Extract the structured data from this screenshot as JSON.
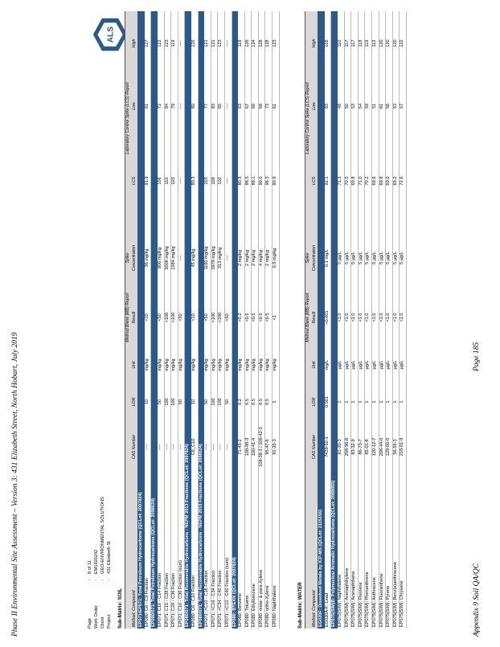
{
  "header": "Phase II Environmental Site Assessment – Version 3: 431 Elizabeth Street, North Hobart, July 2019",
  "footer": {
    "left": "Appendix 9 Soil QA/QC",
    "center": "Page 185"
  },
  "meta": [
    {
      "key": "Page",
      "value": "8 of 11"
    },
    {
      "key": "Work Order",
      "value": "EM1920242"
    },
    {
      "key": "Client",
      "value": "GEO-ENVIRONMENTAL SOLUTIONS"
    },
    {
      "key": "Project",
      "value": "431 Elizabeth St"
    }
  ],
  "logo_text": "ALS",
  "columns": {
    "analytical": "Method: Compound",
    "cas": "CAS Number",
    "lor": "LOR",
    "unit": "Unit",
    "mb": "Method Blank (MB) Report",
    "mb_result": "Result",
    "spike": "Spike",
    "spike_conc": "Concentration",
    "lcs": "Laboratory Control Spike (LCS) Report",
    "spike_recovery": "Spike Recovery (%)",
    "lcs_col": "LCS",
    "recovery_limits": "Recovery Limits (%)",
    "low": "Low",
    "high": "High"
  },
  "soil": {
    "label": "Sub-Matrix: SOIL",
    "groups": [
      {
        "title": "EP071/EP071: Total Petroleum Hydrocarbons (QCLot: 2097824)",
        "rows": [
          [
            "EP080: C6 - C9 Fraction",
            "----",
            "10",
            "mg/kg",
            "<10",
            "36 mg/kg",
            "91.9",
            "61",
            "127"
          ]
        ]
      },
      {
        "title": "EP080/071: Total Petroleum Hydrocarbons (QCLot: 2098624)",
        "rows": [
          [
            "EP071: C10 - C14 Fraction",
            "----",
            "50",
            "mg/kg",
            "<50",
            "806 mg/kg",
            "106",
            "72",
            "122"
          ],
          [
            "EP071: C15 - C28 Fraction",
            "----",
            "100",
            "mg/kg",
            "<100",
            "3006 mg/kg",
            "110",
            "84",
            "123"
          ],
          [
            "EP071: C29 - C36 Fraction",
            "----",
            "100",
            "mg/kg",
            "<100",
            "1584 mg/kg",
            "103",
            "79",
            "119"
          ],
          [
            "EP071: C10 - C36 Fraction (sum)",
            "----",
            "50",
            "mg/kg",
            "<50",
            "----",
            "----",
            "----",
            "----"
          ]
        ]
      },
      {
        "title": "EP080/071: Total Recoverable Hydrocarbons - NEPM 2013 Fractions (QCLot: 2097824)",
        "rows": [
          [
            "EP080: C6 - C10 Fraction",
            "C6_C10",
            "10",
            "mg/kg",
            "<10",
            "45 mg/kg",
            "89.3",
            "60",
            "125"
          ]
        ]
      },
      {
        "title": "EP080/071: Total Recoverable Hydrocarbons - NEPM 2013 Fractions (QCLot: 2098624)",
        "rows": [
          [
            "EP071: >C10 - C16 Fraction",
            "----",
            "50",
            "mg/kg",
            "<50",
            "1160 mg/kg",
            "103",
            "77",
            "121"
          ],
          [
            "EP071: >C16 - C34 Fraction",
            "----",
            "100",
            "mg/kg",
            "<100",
            "3978 mg/kg",
            "109",
            "83",
            "121"
          ],
          [
            "EP071: >C34 - C40 Fraction",
            "----",
            "100",
            "mg/kg",
            "<100",
            "313 mg/kg",
            "102",
            "65",
            "123"
          ],
          [
            "EP071: >C10 - C40 Fraction (sum)",
            "----",
            "50",
            "mg/kg",
            "<50",
            "----",
            "----",
            "----",
            "----"
          ]
        ]
      },
      {
        "title": "EP080: BTEXN (QCLot: 2097824)",
        "rows": [
          [
            "EP080: Benzene",
            "71-43-2",
            "0.2",
            "mg/kg",
            "<0.2",
            "2 mg/kg",
            "80.3",
            "63",
            "119"
          ],
          [
            "EP080: Toluene",
            "108-88-3",
            "0.5",
            "mg/kg",
            "<0.5",
            "2 mg/kg",
            "88.5",
            "67",
            "126"
          ],
          [
            "EP080: Ethylbenzene",
            "100-41-4",
            "0.5",
            "mg/kg",
            "<0.5",
            "2 mg/kg",
            "88.1",
            "66",
            "124"
          ],
          [
            "EP080: meta- & para-Xylene",
            "108-38-3 / 106-42-3",
            "0.5",
            "mg/kg",
            "<0.5",
            "4 mg/kg",
            "99.0",
            "68",
            "128"
          ],
          [
            "EP080: ortho-Xylene",
            "95-47-6",
            "0.5",
            "mg/kg",
            "<0.5",
            "2 mg/kg",
            "96.3",
            "73",
            "128"
          ],
          [
            "EP080: Naphthalene",
            "91-20-3",
            "1",
            "mg/kg",
            "<1",
            "0.5 mg/kg",
            "80.9",
            "61",
            "123"
          ]
        ]
      }
    ]
  },
  "water": {
    "label": "Sub-Matrix: WATER",
    "groups": [
      {
        "title": "EG020F: Dissolved Metals by ICP-MS (QCLot: 2115156)",
        "rows": [
          [
            "EG020A-F: Lead",
            "7439-92-1",
            "0.001",
            "mg/L",
            "<0.001",
            "0.1 mg/L",
            "92.1",
            "83",
            "105"
          ]
        ]
      },
      {
        "title": "EP075(SIM)B: Polynuclear Aromatic Hydrocarbons (QCLot: 2088055)",
        "rows": [
          [
            "EP075(SIM): Naphthalene",
            "91-20-3",
            "1",
            "µg/L",
            "<1.0",
            "5 µg/L",
            "71.3",
            "48",
            "110"
          ],
          [
            "EP075(SIM): Acenaphthylene",
            "208-96-8",
            "1",
            "µg/L",
            "<1.0",
            "5 µg/L",
            "70.5",
            "50",
            "117"
          ],
          [
            "EP075(SIM): Acenaphthene",
            "83-32-9",
            "1",
            "µg/L",
            "<1.0",
            "5 µg/L",
            "69.8",
            "53",
            "117"
          ],
          [
            "EP075(SIM): Fluorene",
            "86-73-7",
            "1",
            "µg/L",
            "<1.0",
            "5 µg/L",
            "71.0",
            "54",
            "118"
          ],
          [
            "EP075(SIM): Phenanthrene",
            "85-01-8",
            "1",
            "µg/L",
            "<1.0",
            "5 µg/L",
            "70.2",
            "59",
            "119"
          ],
          [
            "EP075(SIM): Anthracene",
            "120-12-7",
            "1",
            "µg/L",
            "<1.0",
            "5 µg/L",
            "69.6",
            "51",
            "113"
          ],
          [
            "EP075(SIM): Fluoranthene",
            "206-44-0",
            "1",
            "µg/L",
            "<1.0",
            "5 µg/L",
            "69.8",
            "61",
            "120"
          ],
          [
            "EP075(SIM): Pyrene",
            "129-00-0",
            "1",
            "µg/L",
            "<1.0",
            "5 µg/L",
            "69.0",
            "56",
            "120"
          ],
          [
            "EP075(SIM): Benz(a)anthracene",
            "56-55-3",
            "1",
            "µg/L",
            "<1.0",
            "5 µg/L",
            "69.2",
            "53",
            "120"
          ],
          [
            "EP075(SIM): Chrysene",
            "218-01-9",
            "1",
            "µg/L",
            "<1.0",
            "5 µg/L",
            "72.6",
            "57",
            "122"
          ]
        ]
      }
    ]
  }
}
